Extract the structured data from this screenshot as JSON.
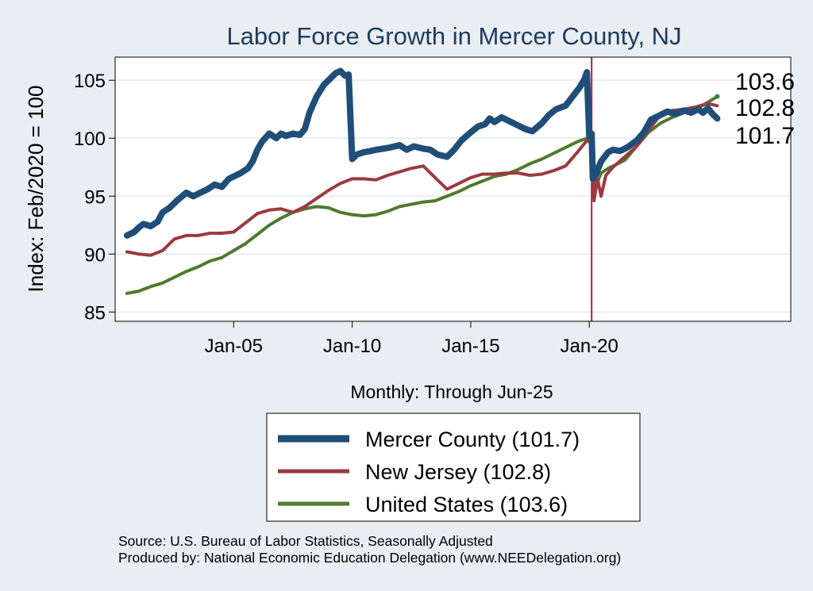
{
  "chart_data": {
    "type": "line",
    "title": "Labor Force Growth in Mercer  County, NJ",
    "ylabel": "Index: Feb/2020 = 100",
    "xlabel": "Monthly: Through Jun-25",
    "xlim": [
      2000.0,
      2028.5
    ],
    "ylim": [
      84.2,
      107.0
    ],
    "yticks": [
      85,
      90,
      95,
      100,
      105
    ],
    "xticks": [
      {
        "x": 2005.0,
        "label": "Jan-05"
      },
      {
        "x": 2010.0,
        "label": "Jan-10"
      },
      {
        "x": 2015.0,
        "label": "Jan-15"
      },
      {
        "x": 2020.0,
        "label": "Jan-20"
      }
    ],
    "reference_line": {
      "x": 2020.1,
      "color": "#c0144c"
    },
    "grid": true,
    "series": [
      {
        "name": "Mercer  County",
        "legend": "Mercer  County (101.7)",
        "color": "#1f4e79",
        "width": 8,
        "end_value": "101.7",
        "x": [
          2000.5,
          2000.8,
          2001.0,
          2001.2,
          2001.5,
          2001.8,
          2002.0,
          2002.3,
          2002.6,
          2003.0,
          2003.3,
          2003.6,
          2003.9,
          2004.2,
          2004.5,
          2004.8,
          2005.0,
          2005.3,
          2005.6,
          2005.8,
          2006.0,
          2006.2,
          2006.5,
          2006.8,
          2007.0,
          2007.2,
          2007.5,
          2007.8,
          2008.0,
          2008.2,
          2008.5,
          2008.8,
          2009.0,
          2009.3,
          2009.5,
          2009.7,
          2009.85,
          2010.0,
          2010.2,
          2010.5,
          2010.8,
          2011.0,
          2011.3,
          2011.6,
          2012.0,
          2012.3,
          2012.6,
          2013.0,
          2013.3,
          2013.6,
          2014.0,
          2014.3,
          2014.6,
          2015.0,
          2015.3,
          2015.6,
          2015.8,
          2016.0,
          2016.3,
          2016.6,
          2017.0,
          2017.3,
          2017.6,
          2018.0,
          2018.3,
          2018.6,
          2019.0,
          2019.3,
          2019.6,
          2019.8,
          2019.9,
          2020.0,
          2020.1,
          2020.15,
          2020.3,
          2020.5,
          2020.8,
          2021.0,
          2021.3,
          2021.6,
          2022.0,
          2022.3,
          2022.6,
          2023.0,
          2023.3,
          2023.6,
          2024.0,
          2024.3,
          2024.6,
          2024.8,
          2025.0,
          2025.2,
          2025.4
        ],
        "y": [
          91.6,
          91.9,
          92.3,
          92.6,
          92.4,
          92.8,
          93.6,
          94.0,
          94.6,
          95.3,
          95.0,
          95.3,
          95.6,
          96.0,
          95.8,
          96.5,
          96.7,
          97.0,
          97.4,
          98.0,
          99.0,
          99.7,
          100.4,
          100.0,
          100.4,
          100.2,
          100.4,
          100.3,
          100.8,
          102.2,
          103.6,
          104.6,
          105.0,
          105.6,
          105.8,
          105.4,
          105.5,
          98.2,
          98.6,
          98.8,
          98.9,
          99.0,
          99.1,
          99.2,
          99.4,
          99.0,
          99.3,
          99.1,
          99.0,
          98.6,
          98.4,
          99.0,
          99.8,
          100.5,
          101.0,
          101.2,
          101.7,
          101.4,
          101.8,
          101.5,
          101.1,
          100.8,
          100.6,
          101.3,
          102.0,
          102.5,
          102.8,
          103.6,
          104.4,
          105.1,
          105.7,
          100.2,
          100.4,
          96.5,
          97.0,
          98.0,
          98.8,
          99.0,
          98.9,
          99.2,
          99.8,
          100.5,
          101.6,
          102.0,
          102.3,
          102.1,
          102.4,
          102.2,
          102.5,
          102.2,
          102.6,
          102.1,
          101.7
        ]
      },
      {
        "name": "New Jersey",
        "legend": "New Jersey (102.8)",
        "color": "#9b3a3f",
        "width": 4,
        "end_value": "102.8",
        "x": [
          2000.5,
          2001.0,
          2001.5,
          2002.0,
          2002.5,
          2003.0,
          2003.5,
          2004.0,
          2004.5,
          2005.0,
          2005.5,
          2006.0,
          2006.5,
          2007.0,
          2007.5,
          2008.0,
          2008.5,
          2009.0,
          2009.5,
          2010.0,
          2010.5,
          2011.0,
          2011.5,
          2012.0,
          2012.5,
          2013.0,
          2013.5,
          2014.0,
          2014.5,
          2015.0,
          2015.5,
          2016.0,
          2016.5,
          2017.0,
          2017.5,
          2018.0,
          2018.5,
          2019.0,
          2019.5,
          2019.9,
          2020.1,
          2020.2,
          2020.35,
          2020.5,
          2020.7,
          2021.0,
          2021.5,
          2022.0,
          2022.5,
          2023.0,
          2023.5,
          2024.0,
          2024.5,
          2025.0,
          2025.4
        ],
        "y": [
          90.2,
          90.0,
          89.9,
          90.3,
          91.3,
          91.6,
          91.6,
          91.8,
          91.8,
          91.9,
          92.7,
          93.5,
          93.8,
          93.9,
          93.6,
          94.1,
          94.8,
          95.5,
          96.1,
          96.5,
          96.5,
          96.4,
          96.8,
          97.1,
          97.4,
          97.6,
          96.6,
          95.6,
          96.1,
          96.6,
          96.9,
          96.9,
          97.0,
          97.0,
          96.8,
          96.9,
          97.2,
          97.6,
          98.8,
          99.8,
          99.6,
          94.6,
          96.5,
          95.0,
          96.8,
          97.5,
          98.4,
          99.3,
          100.7,
          102.0,
          102.4,
          102.5,
          102.7,
          103.0,
          102.8
        ]
      },
      {
        "name": "United States",
        "legend": "United States (103.6)",
        "color": "#4e7a2e",
        "width": 4,
        "end_value": "103.6",
        "x": [
          2000.5,
          2001.0,
          2001.5,
          2002.0,
          2002.5,
          2003.0,
          2003.5,
          2004.0,
          2004.5,
          2005.0,
          2005.5,
          2006.0,
          2006.5,
          2007.0,
          2007.5,
          2008.0,
          2008.5,
          2009.0,
          2009.5,
          2010.0,
          2010.5,
          2011.0,
          2011.5,
          2012.0,
          2012.5,
          2013.0,
          2013.5,
          2014.0,
          2014.5,
          2015.0,
          2015.5,
          2016.0,
          2016.5,
          2017.0,
          2017.5,
          2018.0,
          2018.5,
          2019.0,
          2019.5,
          2019.9,
          2020.1,
          2020.3,
          2020.5,
          2020.8,
          2021.0,
          2021.5,
          2022.0,
          2022.5,
          2023.0,
          2023.5,
          2024.0,
          2024.5,
          2025.0,
          2025.4
        ],
        "y": [
          86.6,
          86.8,
          87.2,
          87.5,
          88.0,
          88.5,
          88.9,
          89.4,
          89.7,
          90.3,
          90.9,
          91.7,
          92.5,
          93.1,
          93.6,
          93.9,
          94.1,
          94.0,
          93.6,
          93.4,
          93.3,
          93.4,
          93.7,
          94.1,
          94.3,
          94.5,
          94.6,
          95.0,
          95.4,
          95.9,
          96.3,
          96.7,
          96.9,
          97.3,
          97.8,
          98.2,
          98.7,
          99.2,
          99.7,
          100.0,
          99.6,
          96.0,
          97.0,
          97.4,
          97.6,
          98.1,
          99.3,
          100.5,
          101.3,
          101.8,
          102.2,
          102.5,
          103.1,
          103.6
        ]
      }
    ]
  },
  "notes": {
    "source": "Source: U.S. Bureau of Labor Statistics, Seasonally Adjusted",
    "producer": "Produced by: National Economic Education Delegation (www.NEEDelegation.org)"
  }
}
